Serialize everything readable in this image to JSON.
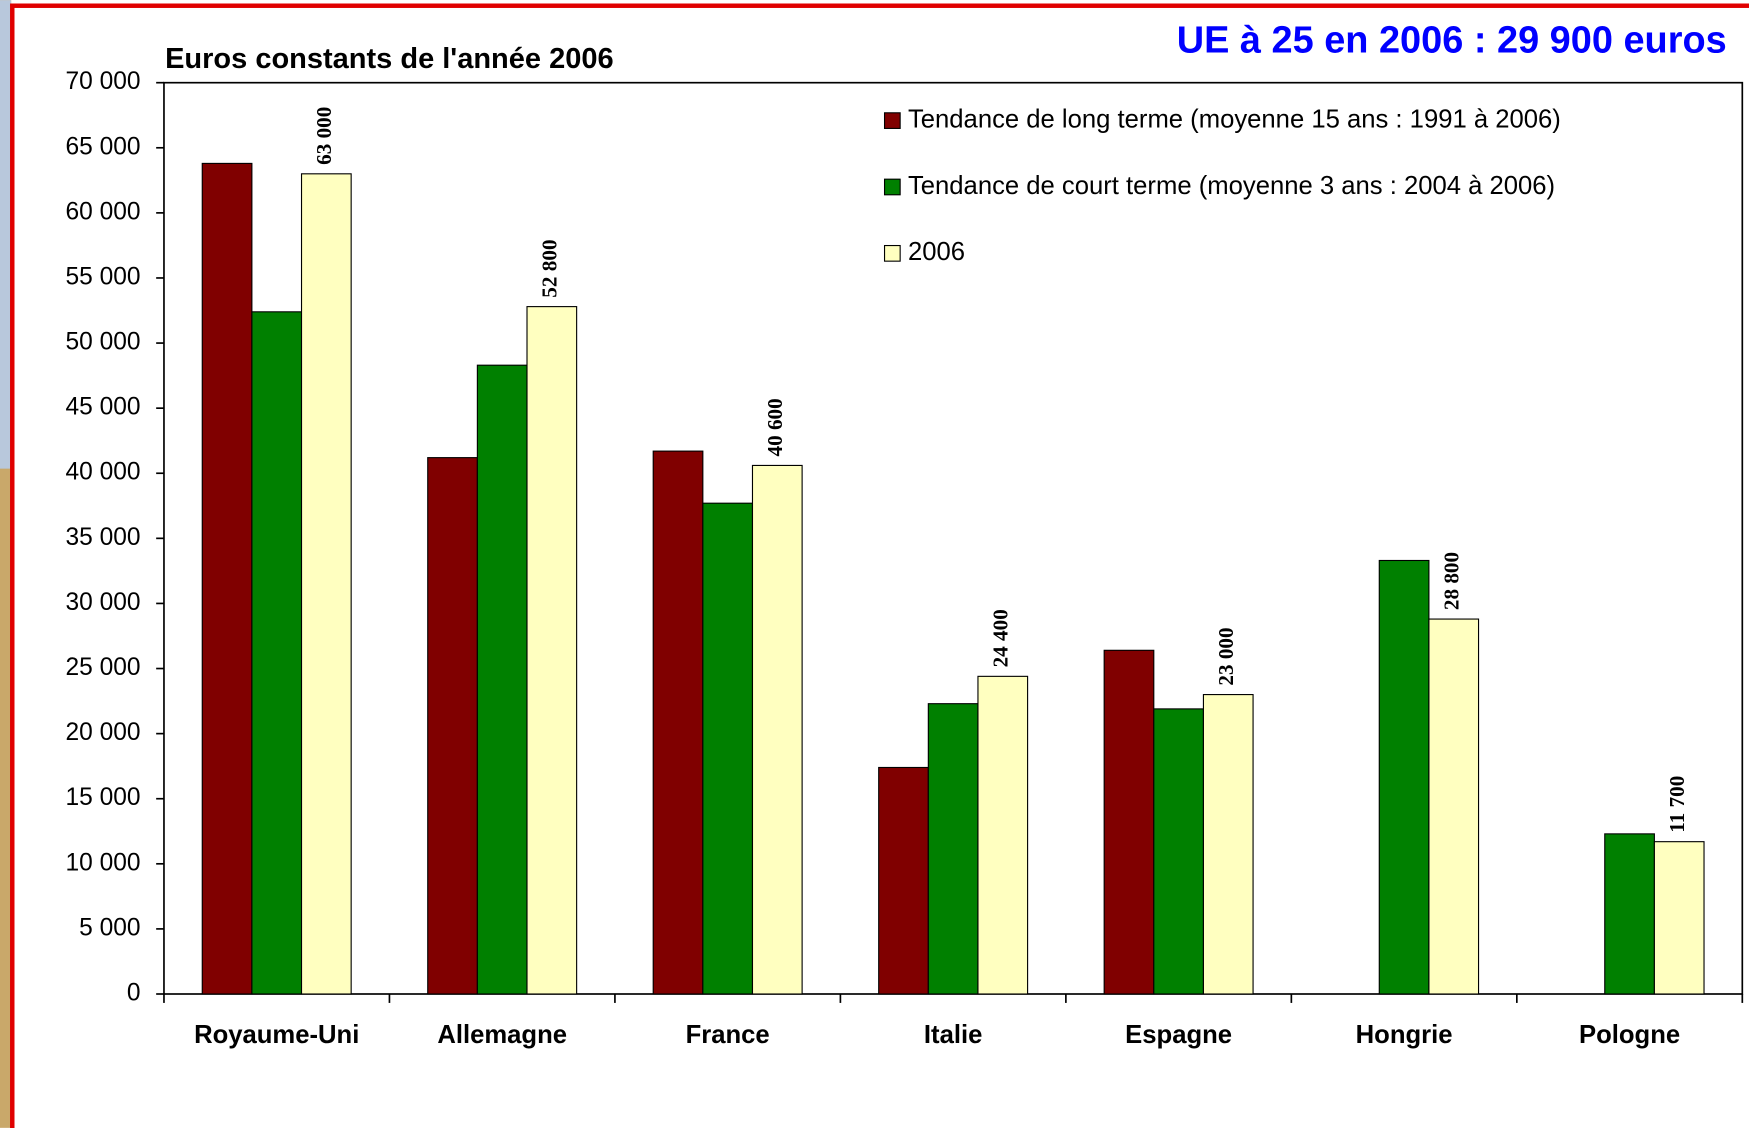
{
  "chart_data": {
    "type": "bar",
    "title": "Euros constants de l'année 2006",
    "annotation": "UE à 25 en 2006 : 29 900 euros",
    "categories": [
      "Royaume-Uni",
      "Allemagne",
      "France",
      "Italie",
      "Espagne",
      "Hongrie",
      "Pologne"
    ],
    "series": [
      {
        "name": "Tendance de long terme (moyenne 15 ans : 1991 à 2006)",
        "color": "#800000",
        "values": [
          63800,
          41200,
          41700,
          17400,
          26400,
          null,
          null
        ]
      },
      {
        "name": "Tendance de court terme (moyenne 3 ans : 2004 à 2006)",
        "color": "#008000",
        "values": [
          52400,
          48300,
          37700,
          22300,
          21900,
          33300,
          12300
        ]
      },
      {
        "name": "2006",
        "color": "#ffffc0",
        "values": [
          63000,
          52800,
          40600,
          24400,
          23000,
          28800,
          11700
        ],
        "value_labels": [
          "63 000",
          "52 800",
          "40 600",
          "24 400",
          "23 000",
          "28 800",
          "11 700"
        ]
      }
    ],
    "ylim": [
      0,
      70000
    ],
    "yticks": [
      0,
      {
        "value": 5000,
        "label": "5 000"
      },
      {
        "value": 10000,
        "label": "10 000"
      },
      {
        "value": 15000,
        "label": "15 000"
      },
      {
        "value": 20000,
        "label": "20 000"
      },
      {
        "value": 25000,
        "label": "25 000"
      },
      {
        "value": 30000,
        "label": "30 000"
      },
      {
        "value": 35000,
        "label": "35 000"
      },
      {
        "value": 40000,
        "label": "40 000"
      },
      {
        "value": 45000,
        "label": "45 000"
      },
      {
        "value": 50000,
        "label": "50 000"
      },
      {
        "value": 55000,
        "label": "55 000"
      },
      {
        "value": 60000,
        "label": "60 000"
      },
      {
        "value": 65000,
        "label": "65 000"
      },
      {
        "value": 70000,
        "label": "70 000"
      }
    ],
    "legend": "top-right"
  }
}
